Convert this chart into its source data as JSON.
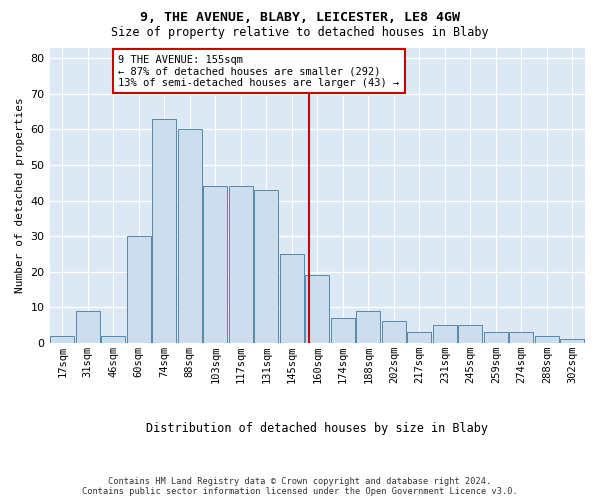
{
  "title": "9, THE AVENUE, BLABY, LEICESTER, LE8 4GW",
  "subtitle": "Size of property relative to detached houses in Blaby",
  "xlabel": "Distribution of detached houses by size in Blaby",
  "ylabel": "Number of detached properties",
  "bar_labels": [
    "17sqm",
    "31sqm",
    "46sqm",
    "60sqm",
    "74sqm",
    "88sqm",
    "103sqm",
    "117sqm",
    "131sqm",
    "145sqm",
    "160sqm",
    "174sqm",
    "188sqm",
    "202sqm",
    "217sqm",
    "231sqm",
    "245sqm",
    "259sqm",
    "274sqm",
    "288sqm",
    "302sqm"
  ],
  "bar_heights": [
    2,
    9,
    2,
    30,
    63,
    60,
    44,
    44,
    43,
    25,
    19,
    7,
    9,
    6,
    3,
    5,
    5,
    3,
    3,
    2,
    1
  ],
  "bar_color": "#ccdded",
  "bar_edge_color": "#5588aa",
  "line_color": "#cc0000",
  "grid_color": "#ffffff",
  "bg_color": "#dce8f4",
  "ylim_max": 83,
  "yticks": [
    0,
    10,
    20,
    30,
    40,
    50,
    60,
    70,
    80
  ],
  "annotation_line1": "9 THE AVENUE: 155sqm",
  "annotation_line2": "← 87% of detached houses are smaller (292)",
  "annotation_line3": "13% of semi-detached houses are larger (43) →",
  "footer_line1": "Contains HM Land Registry data © Crown copyright and database right 2024.",
  "footer_line2": "Contains public sector information licensed under the Open Government Licence v3.0."
}
